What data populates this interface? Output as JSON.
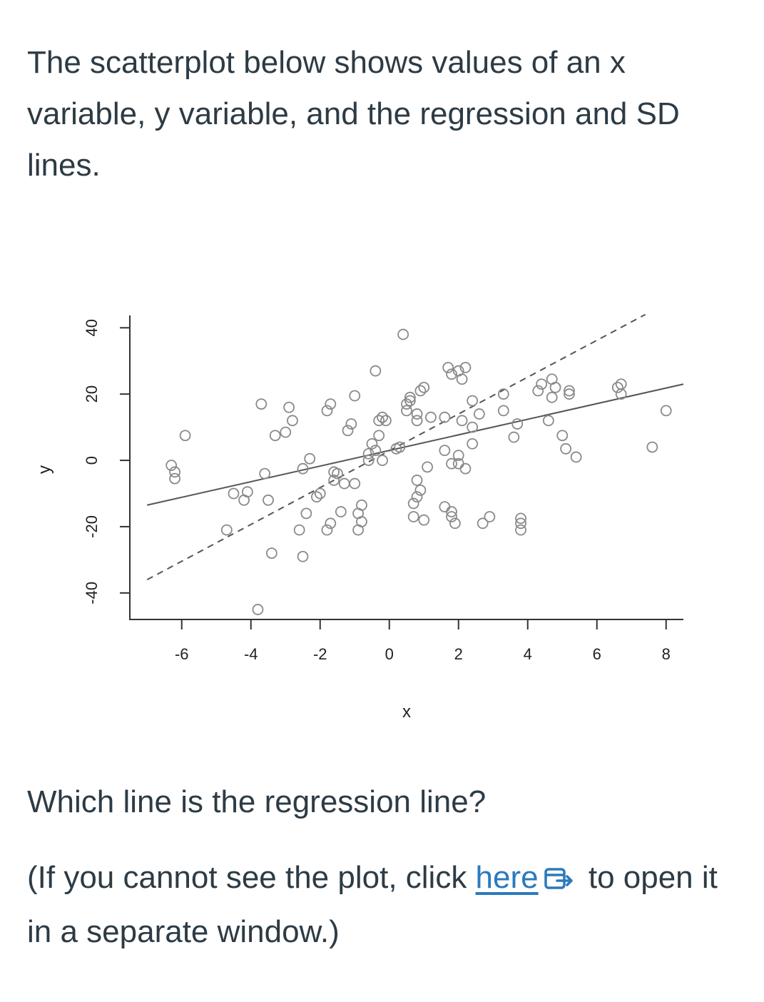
{
  "intro": {
    "text": "The scatterplot below shows values of an x variable, y variable, and the regression and SD lines."
  },
  "question": {
    "text": "Which line is the regression line?"
  },
  "note": {
    "before": "(If you cannot see the plot, click ",
    "link_label": "here",
    "after": " to open it in a separate window.)",
    "link_color": "#2b7abc",
    "icon": "external-link-icon"
  },
  "chart_data": {
    "type": "scatter",
    "xlabel": "x",
    "ylabel": "y",
    "xlim": [
      -7.5,
      8.5
    ],
    "ylim": [
      -48,
      42
    ],
    "x_ticks": [
      -6,
      -4,
      -2,
      0,
      2,
      4,
      6,
      8
    ],
    "x_tick_labels": [
      "-6",
      "-4",
      "-2",
      "0",
      "2",
      "4",
      "6",
      "8"
    ],
    "y_ticks": [
      -40,
      -20,
      0,
      20,
      40
    ],
    "y_tick_labels": [
      "-40",
      "-20",
      "0",
      "20",
      "40"
    ],
    "grid": false,
    "lines": [
      {
        "style": "solid",
        "x": [
          -7,
          8.5
        ],
        "y": [
          -13.5,
          23
        ]
      },
      {
        "style": "dashed",
        "x": [
          -7,
          7.4
        ],
        "y": [
          -36,
          44
        ]
      }
    ],
    "points": [
      [
        -6.3,
        -1.5
      ],
      [
        -6.2,
        -3.5
      ],
      [
        -6.2,
        -5.5
      ],
      [
        -5.9,
        7.5
      ],
      [
        -4.7,
        -21
      ],
      [
        -4.5,
        -10
      ],
      [
        -4.2,
        -12
      ],
      [
        -4.1,
        -9.5
      ],
      [
        -3.8,
        -45
      ],
      [
        -3.7,
        17
      ],
      [
        -3.6,
        -4
      ],
      [
        -3.5,
        -12
      ],
      [
        -3.4,
        -28
      ],
      [
        -3.3,
        7.5
      ],
      [
        -3.0,
        8.5
      ],
      [
        -2.9,
        16
      ],
      [
        -2.8,
        12
      ],
      [
        -2.6,
        -21
      ],
      [
        -2.5,
        -2.5
      ],
      [
        -2.5,
        -29
      ],
      [
        -2.4,
        -16
      ],
      [
        -2.3,
        0.5
      ],
      [
        -2.1,
        -11
      ],
      [
        -2.0,
        -10
      ],
      [
        -1.8,
        -21
      ],
      [
        -1.7,
        -19
      ],
      [
        -1.8,
        15
      ],
      [
        -1.7,
        17
      ],
      [
        -1.6,
        -6
      ],
      [
        -1.6,
        -3.5
      ],
      [
        -1.5,
        -4
      ],
      [
        -1.4,
        -15.5
      ],
      [
        -1.3,
        -7
      ],
      [
        -1.2,
        9
      ],
      [
        -1.1,
        11
      ],
      [
        -1.0,
        19.5
      ],
      [
        -1.0,
        -7
      ],
      [
        -0.9,
        -16
      ],
      [
        -0.8,
        -18.5
      ],
      [
        -0.8,
        -13.5
      ],
      [
        -0.9,
        -21
      ],
      [
        -0.6,
        2
      ],
      [
        -0.5,
        5
      ],
      [
        -0.4,
        3
      ],
      [
        -0.3,
        7.5
      ],
      [
        -0.3,
        12
      ],
      [
        -0.2,
        13
      ],
      [
        -0.1,
        12
      ],
      [
        -0.2,
        0
      ],
      [
        -0.6,
        0
      ],
      [
        -0.4,
        27
      ],
      [
        0.2,
        3.5
      ],
      [
        0.3,
        4
      ],
      [
        0.4,
        38
      ],
      [
        0.6,
        19
      ],
      [
        0.5,
        15
      ],
      [
        0.5,
        17
      ],
      [
        0.6,
        18
      ],
      [
        0.8,
        14
      ],
      [
        0.8,
        12
      ],
      [
        0.9,
        21
      ],
      [
        1.0,
        22
      ],
      [
        1.2,
        13
      ],
      [
        0.7,
        -13
      ],
      [
        0.8,
        -6
      ],
      [
        0.8,
        -11
      ],
      [
        0.9,
        -9
      ],
      [
        0.7,
        -17
      ],
      [
        1.0,
        -18
      ],
      [
        1.1,
        -2
      ],
      [
        1.6,
        3
      ],
      [
        1.6,
        13
      ],
      [
        1.8,
        26
      ],
      [
        2.0,
        27
      ],
      [
        2.1,
        24.5
      ],
      [
        1.7,
        28
      ],
      [
        2.2,
        28
      ],
      [
        2.4,
        10
      ],
      [
        2.1,
        12
      ],
      [
        1.6,
        -14
      ],
      [
        1.8,
        -15.5
      ],
      [
        1.8,
        -17
      ],
      [
        1.9,
        -19
      ],
      [
        1.8,
        -1
      ],
      [
        2.0,
        -1
      ],
      [
        2.0,
        1.5
      ],
      [
        2.2,
        -2.5
      ],
      [
        2.4,
        5
      ],
      [
        2.4,
        18
      ],
      [
        2.6,
        14
      ],
      [
        2.7,
        -19
      ],
      [
        2.9,
        -17
      ],
      [
        3.3,
        20
      ],
      [
        3.3,
        15
      ],
      [
        3.6,
        7
      ],
      [
        3.7,
        11
      ],
      [
        3.8,
        -17.5
      ],
      [
        3.8,
        -19
      ],
      [
        3.8,
        -21
      ],
      [
        4.6,
        12
      ],
      [
        4.3,
        21
      ],
      [
        4.4,
        23
      ],
      [
        4.7,
        24.5
      ],
      [
        4.8,
        22
      ],
      [
        4.7,
        19
      ],
      [
        5.2,
        21
      ],
      [
        5.2,
        20
      ],
      [
        5.0,
        7.5
      ],
      [
        5.1,
        3.5
      ],
      [
        5.4,
        1
      ],
      [
        6.7,
        20
      ],
      [
        6.7,
        23
      ],
      [
        6.6,
        22
      ],
      [
        7.6,
        4
      ],
      [
        8.0,
        15
      ]
    ]
  }
}
